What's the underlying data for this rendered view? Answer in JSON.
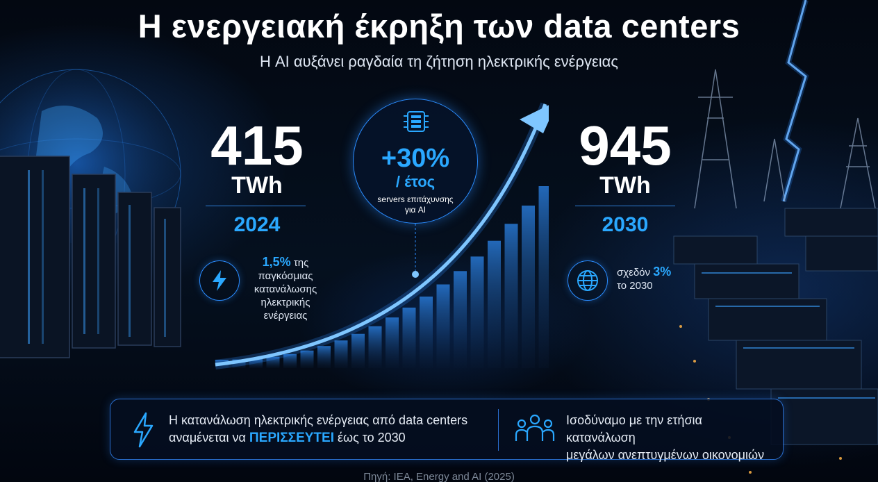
{
  "header": {
    "title": "Η ενεργειακή έκρηξη των data centers",
    "subtitle": "Η AI αυξάνει ραγδαία τη ζήτηση ηλεκτρικής ενέργειας"
  },
  "left_stat": {
    "value": "415",
    "unit": "TWh",
    "year": "2024",
    "share_value": "1,5%",
    "share_text_1": "της",
    "share_text_2": "παγκόσμιας",
    "share_text_3": "κατανάλωσης",
    "share_text_4": "ηλεκτρικής",
    "share_text_5": "ενέργειας"
  },
  "center_stat": {
    "value": "+30%",
    "per": "/ έτος",
    "desc_1": "servers επιτάχυνσης",
    "desc_2": "για AI"
  },
  "right_stat": {
    "value": "945",
    "unit": "TWh",
    "year": "2030",
    "share_prefix": "σχεδόν",
    "share_value": "3%",
    "share_suffix": "το 2030"
  },
  "bottom": {
    "left_line1": "Η κατανάλωση ηλεκτρικής ενέργειας από data centers",
    "left_line2_pre": "αναμένεται να",
    "left_highlight": "ΠΕΡΙΣΣΕΥΤΕΙ",
    "left_line2_post": "έως το 2030",
    "right_line1": "Ισοδύναμο με την ετήσια κατανάλωση",
    "right_line2": "μεγάλων ανεπτυγμένων οικονομιών"
  },
  "source": "Πηγή:  IEA, Energy and AI (2025)",
  "colors": {
    "accent": "#2aa8ff",
    "border": "#2a8cff",
    "background": "#02060f"
  }
}
